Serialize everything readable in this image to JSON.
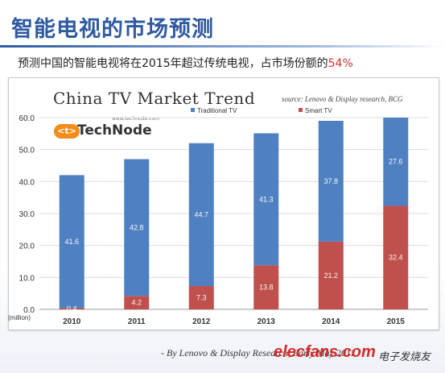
{
  "slide": {
    "title": "智能电视的市场预测",
    "subtitle_text": "预测中国的智能电视将在2015年超过传统电视，占市场份额的",
    "subtitle_highlight": "54%",
    "footer_credit": "- By Lenovo & Display Research, Early May 2011",
    "watermark": "elecfans.com",
    "watermark_cn": "电子发烧友"
  },
  "logo": {
    "badge": "<t>",
    "name": "TechNode",
    "url": "www.technode.com"
  },
  "colors": {
    "traditional": "#4f81c2",
    "smart": "#c0504d",
    "title": "#2f5aa0",
    "highlight": "#d03030"
  },
  "chart_data": {
    "type": "bar",
    "stacked": true,
    "title": "China TV Market Trend",
    "source": "source: Lenovo & Display research, BCG",
    "xlabel": "",
    "ylabel": "(million)",
    "ylim": [
      0,
      60
    ],
    "yticks": [
      "0.0",
      "10.0",
      "20.0",
      "30.0",
      "40.0",
      "50.0",
      "60.0"
    ],
    "categories": [
      "2010",
      "2011",
      "2012",
      "2013",
      "2014",
      "2015"
    ],
    "series": [
      {
        "name": "Smart TV",
        "values": [
          0.4,
          4.2,
          7.3,
          13.8,
          21.2,
          32.4
        ],
        "labels": [
          "0.4",
          "4.2",
          "7.3",
          "13.8",
          "21.2",
          "32.4"
        ]
      },
      {
        "name": "Traditional TV",
        "values": [
          41.6,
          42.8,
          44.7,
          41.3,
          37.8,
          27.6
        ],
        "labels": [
          "41.6",
          "42.8",
          "44.7",
          "41.3",
          "37.8",
          "27.6"
        ]
      }
    ],
    "grid": true,
    "legend": "top-right"
  }
}
